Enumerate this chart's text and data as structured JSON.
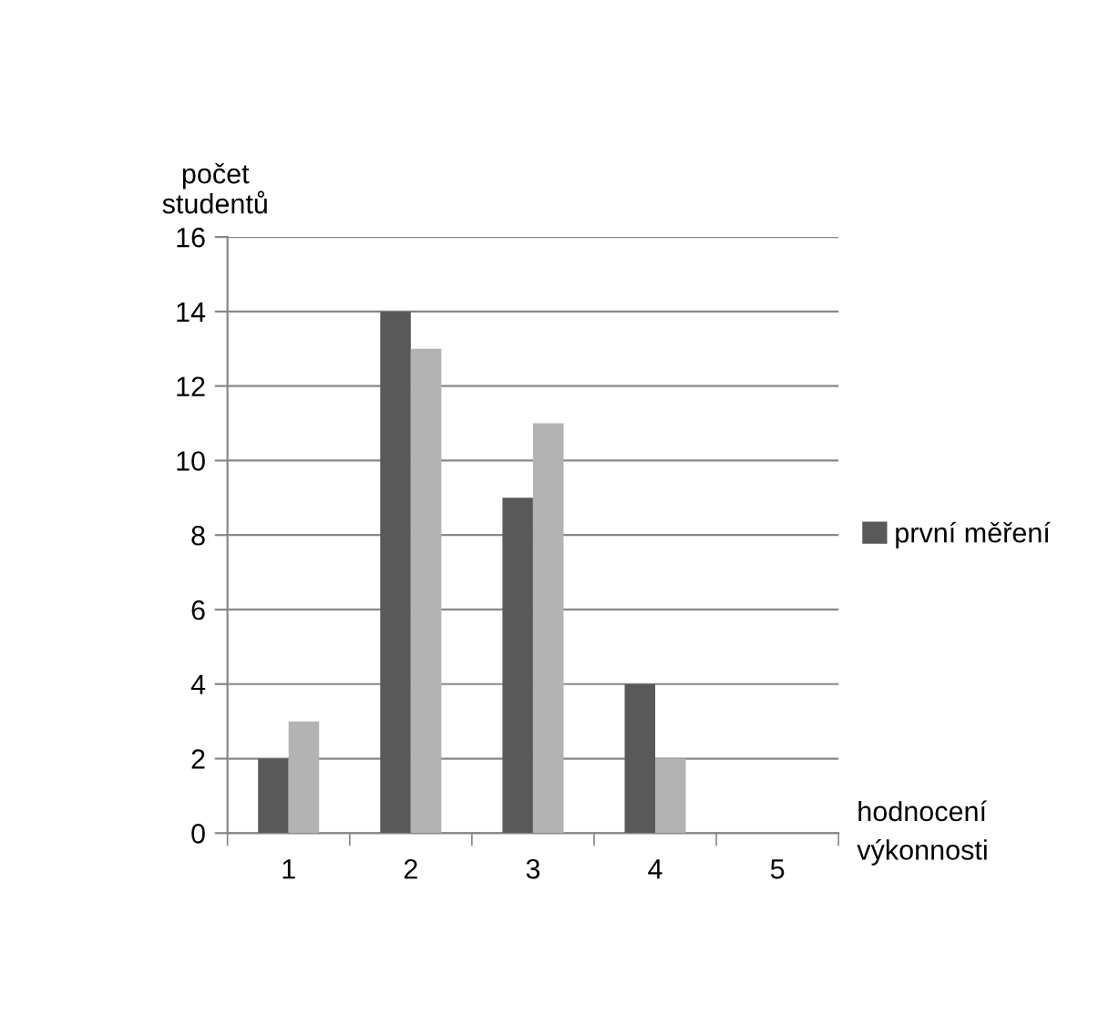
{
  "chart_data": {
    "type": "bar",
    "ylabel": "počet\nstudentů",
    "xlabel": "hodnocení\nvýkonnosti",
    "categories": [
      "1",
      "2",
      "3",
      "4",
      "5"
    ],
    "series": [
      {
        "name": "první měření",
        "color": "#595959",
        "values": [
          2,
          14,
          9,
          4,
          0
        ]
      },
      {
        "color": "#b3b3b3",
        "values": [
          3,
          13,
          11,
          2,
          0
        ]
      }
    ],
    "ylim": [
      0,
      16
    ],
    "yticks": [
      0,
      2,
      4,
      6,
      8,
      10,
      12,
      14,
      16
    ],
    "grid": "y",
    "legend": "right"
  }
}
